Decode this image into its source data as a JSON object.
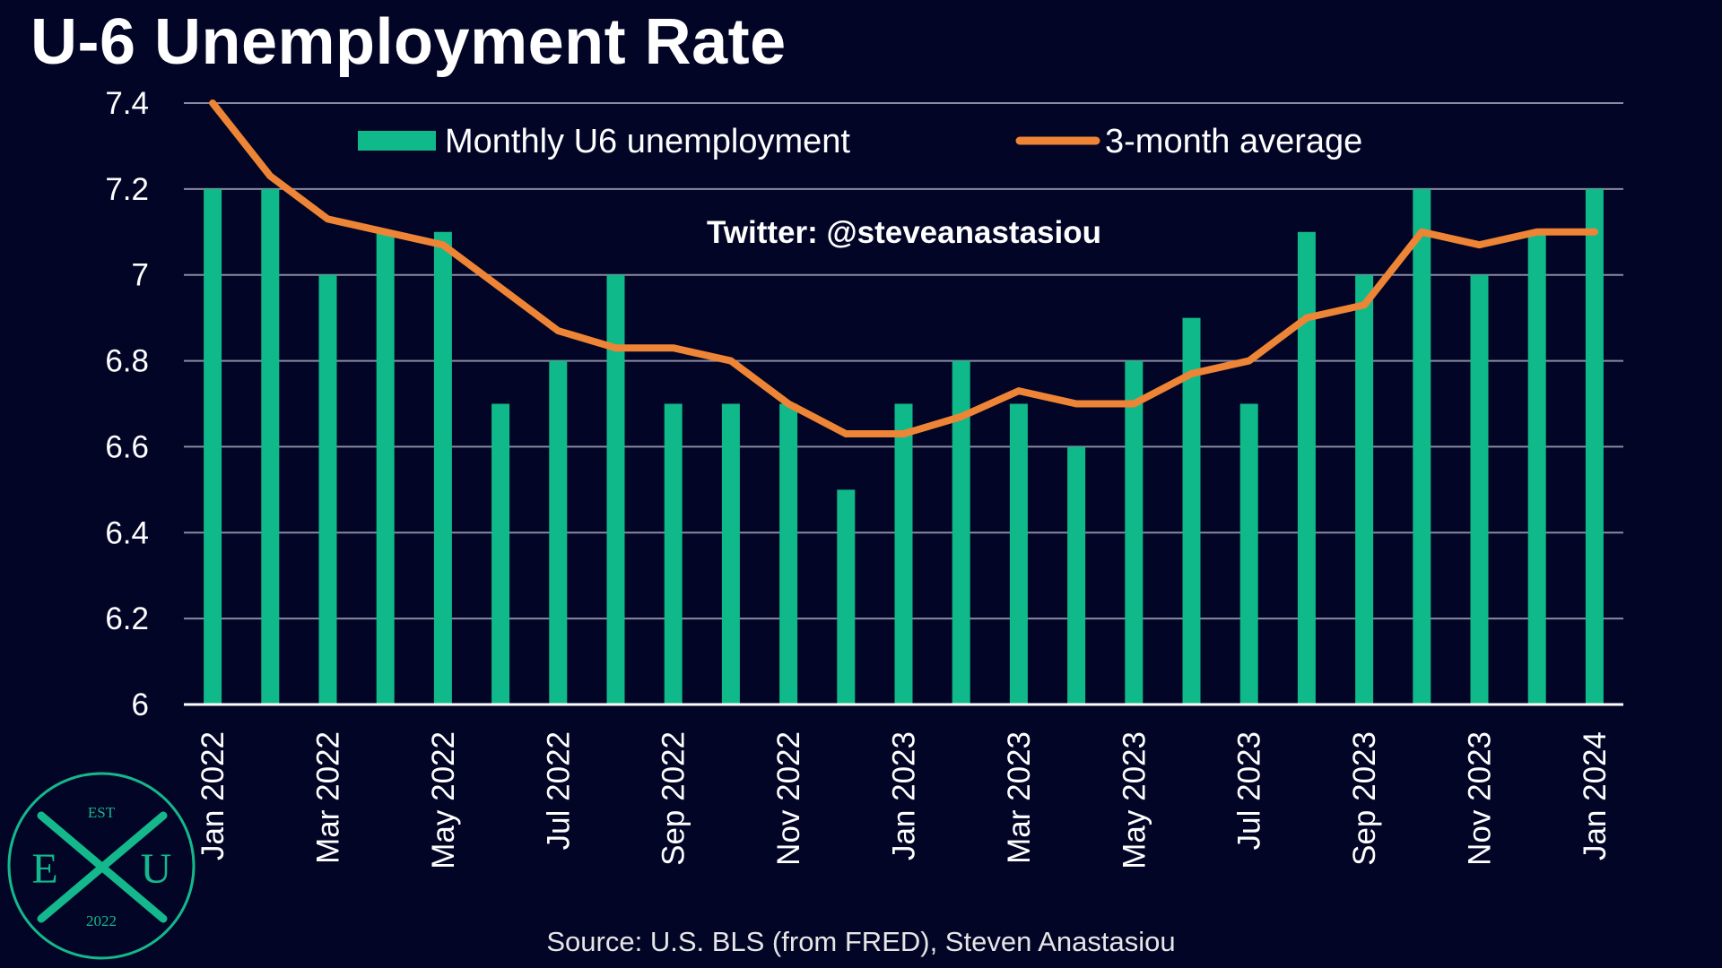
{
  "title": "U-6 Unemployment Rate",
  "source": "Source: U.S. BLS (from FRED), Steven Anastasiou",
  "watermark": "Twitter: @steveanastasiou",
  "logo": {
    "top": "EST",
    "left": "E",
    "center": "X",
    "right": "U",
    "bottom": "2022"
  },
  "colors": {
    "background": "#020526",
    "bars": "#10b98a",
    "line": "#ee8435",
    "grid": "#8a8aa0",
    "logo": "#14b88c"
  },
  "chart_data": {
    "type": "bar",
    "title": "U-6 Unemployment Rate",
    "xlabel": "",
    "ylabel": "",
    "ylim": [
      6,
      7.4
    ],
    "yticks": [
      "6",
      "6.2",
      "6.4",
      "6.6",
      "6.8",
      "7",
      "7.2",
      "7.4"
    ],
    "grid": true,
    "legend_position": "top",
    "categories": [
      "Jan 2022",
      "Feb 2022",
      "Mar 2022",
      "Apr 2022",
      "May 2022",
      "Jun 2022",
      "Jul 2022",
      "Aug 2022",
      "Sep 2022",
      "Oct 2022",
      "Nov 2022",
      "Dec 2022",
      "Jan 2023",
      "Feb 2023",
      "Mar 2023",
      "Apr 2023",
      "May 2023",
      "Jun 2023",
      "Jul 2023",
      "Aug 2023",
      "Sep 2023",
      "Oct 2023",
      "Nov 2023",
      "Dec 2023",
      "Jan 2024"
    ],
    "tick_labels": [
      "Jan 2022",
      "Mar 2022",
      "May 2022",
      "Jul 2022",
      "Sep 2022",
      "Nov 2022",
      "Jan 2023",
      "Mar 2023",
      "May 2023",
      "Jul 2023",
      "Sep 2023",
      "Nov 2023",
      "Jan 2024"
    ],
    "series": [
      {
        "name": "Monthly U6 unemployment",
        "type": "bar",
        "values": [
          7.2,
          7.2,
          7.0,
          7.1,
          7.1,
          6.7,
          6.8,
          7.0,
          6.7,
          6.7,
          6.7,
          6.5,
          6.7,
          6.8,
          6.7,
          6.6,
          6.8,
          6.9,
          6.7,
          7.1,
          7.0,
          7.2,
          7.0,
          7.1,
          7.2
        ]
      },
      {
        "name": "3-month average",
        "type": "line",
        "values": [
          7.4,
          7.23,
          7.13,
          7.1,
          7.07,
          6.97,
          6.87,
          6.83,
          6.83,
          6.8,
          6.7,
          6.63,
          6.63,
          6.67,
          6.73,
          6.7,
          6.7,
          6.77,
          6.8,
          6.9,
          6.93,
          7.1,
          7.07,
          7.1,
          7.1
        ]
      }
    ]
  }
}
